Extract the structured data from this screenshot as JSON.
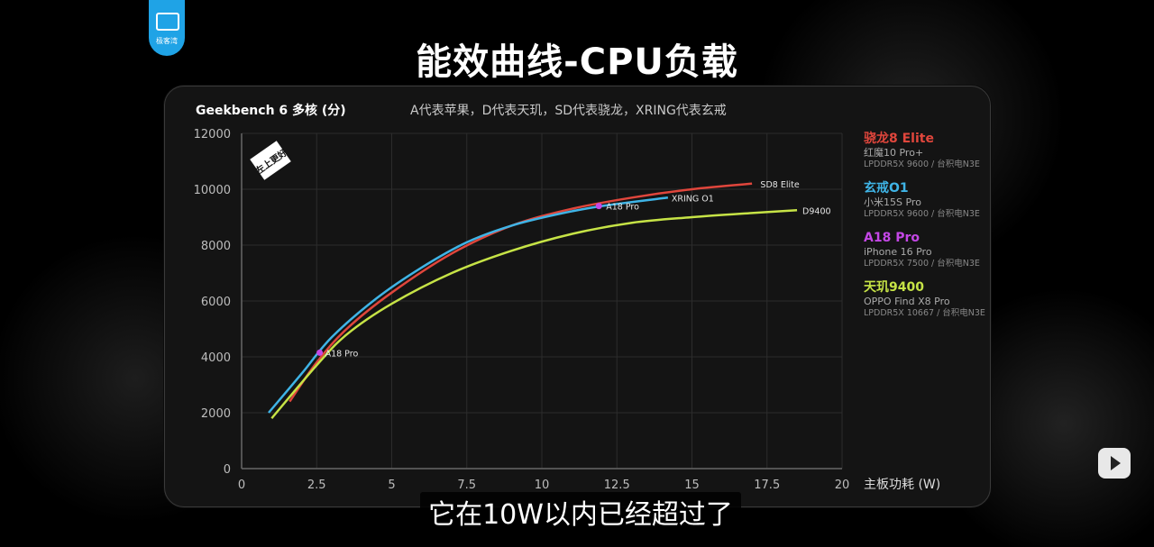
{
  "page": {
    "title": "能效曲线-CPU负载",
    "logo_text": "极客湾",
    "subtitle": "它在10W以内已经超过了"
  },
  "chart_data": {
    "type": "line",
    "title": "Geekbench 6 多核 (分)",
    "note": "A代表苹果，D代表天玑，SD代表骁龙，XRING代表玄戒",
    "xlabel": "主板功耗 (W)",
    "ylabel": "",
    "xlim": [
      0,
      20
    ],
    "ylim": [
      0,
      12000
    ],
    "xticks": [
      "0",
      "2.5",
      "5",
      "7.5",
      "10",
      "12.5",
      "15",
      "17.5",
      "20"
    ],
    "yticks": [
      "0",
      "2000",
      "4000",
      "6000",
      "8000",
      "10000",
      "12000"
    ],
    "grid": true,
    "badge": "左上更好",
    "series": [
      {
        "name": "SD8 Elite",
        "color": "#e0463c",
        "x": [
          1.6,
          2.5,
          3.5,
          5,
          7,
          9,
          11,
          13,
          15,
          17
        ],
        "y": [
          2400,
          3800,
          5000,
          6300,
          7700,
          8700,
          9300,
          9700,
          10000,
          10200
        ]
      },
      {
        "name": "XRING O1",
        "color": "#3fb4e6",
        "x": [
          0.9,
          2,
          3,
          4.5,
          6,
          7.5,
          9,
          10.5,
          12,
          14.2
        ],
        "y": [
          2000,
          3400,
          4700,
          6100,
          7200,
          8100,
          8700,
          9100,
          9400,
          9700
        ]
      },
      {
        "name": "A18 Pro",
        "color": "#c447e6",
        "x": [
          2.6,
          11.9
        ],
        "y": [
          4150,
          9400
        ]
      },
      {
        "name": "D9400",
        "color": "#c6e346",
        "x": [
          1.0,
          2.5,
          3.5,
          5,
          7,
          9,
          11,
          13,
          15,
          17,
          18.5
        ],
        "y": [
          1800,
          3700,
          4800,
          5900,
          7000,
          7800,
          8400,
          8800,
          9000,
          9150,
          9250
        ]
      }
    ],
    "annotations": [
      "SD8 Elite",
      "XRING O1",
      "A18 Pro",
      "A18 Pro",
      "D9400"
    ]
  },
  "legend": [
    {
      "name": "骁龙8 Elite",
      "device": "红魔10 Pro+",
      "memo": "LPDDR5X 9600 / 台积电N3E",
      "color": "#e0463c"
    },
    {
      "name": "玄戒O1",
      "device": "小米15S Pro",
      "memo": "LPDDR5X 9600 / 台积电N3E",
      "color": "#3fb4e6"
    },
    {
      "name": "A18 Pro",
      "device": "iPhone 16 Pro",
      "memo": "LPDDR5X 7500 / 台积电N3E",
      "color": "#c447e6"
    },
    {
      "name": "天玑9400",
      "device": "OPPO Find X8 Pro",
      "memo": "LPDDR5X 10667 / 台积电N3E",
      "color": "#c6e346"
    }
  ]
}
